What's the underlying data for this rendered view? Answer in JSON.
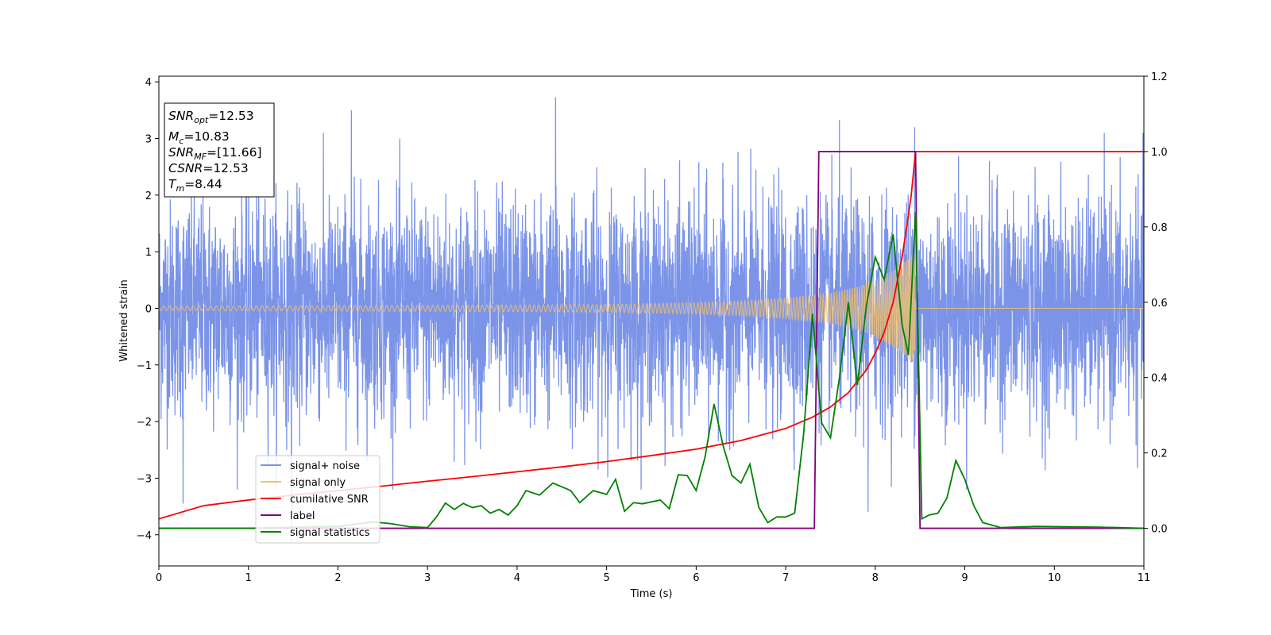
{
  "chart_data": {
    "type": "line",
    "xlabel": "Time (s)",
    "ylabel_left": "Whitened strain",
    "xlim": [
      0,
      11
    ],
    "ylim_left": [
      -4.55,
      4.1
    ],
    "ylim_right": [
      -0.1,
      1.2
    ],
    "grid": false,
    "legend_position": "lower-left",
    "x_ticks": [
      "0",
      "1",
      "2",
      "3",
      "4",
      "5",
      "6",
      "7",
      "8",
      "9",
      "10",
      "11"
    ],
    "y_ticks_left": [
      "−4",
      "−3",
      "−2",
      "−1",
      "0",
      "1",
      "2",
      "3",
      "4"
    ],
    "y_ticks_right": [
      "0.0",
      "0.2",
      "0.4",
      "0.6",
      "0.8",
      "1.0",
      "1.2"
    ],
    "info_box": {
      "snr_opt": {
        "base": "SNR",
        "sub": "opt",
        "value": "=12.53"
      },
      "mc": {
        "base": "M",
        "sub": "c",
        "value": "=10.83"
      },
      "snr_mf": {
        "base": "SNR",
        "sub": "MF",
        "value": "=[11.66]"
      },
      "csnr": {
        "base": "CSNR",
        "sub": "",
        "value": "=12.53"
      },
      "tm": {
        "base": "T",
        "sub": "m",
        "value": "=8.44"
      }
    },
    "series": [
      {
        "name": "signal+ noise",
        "color": "#7b94e8",
        "axis": "left",
        "description_of_shape": "Gaussian-like noise, amplitude ±2.5 typical, extremes reaching 3.73 (~4.4 s) and −4.15 (~1.5 s)",
        "peaks": [
          [
            0.27,
            -3.45
          ],
          [
            1.48,
            -4.15
          ],
          [
            2.15,
            3.5
          ],
          [
            4.43,
            3.73
          ],
          [
            7.6,
            3.33
          ],
          [
            7.92,
            -3.6
          ],
          [
            8.44,
            3.2
          ]
        ]
      },
      {
        "name": "signal only",
        "color": "#f2c06b",
        "axis": "left",
        "envelope": [
          [
            0,
            0.04
          ],
          [
            1,
            0.045
          ],
          [
            2,
            0.05
          ],
          [
            3,
            0.055
          ],
          [
            4,
            0.06
          ],
          [
            5,
            0.07
          ],
          [
            6,
            0.1
          ],
          [
            6.5,
            0.13
          ],
          [
            7,
            0.18
          ],
          [
            7.5,
            0.27
          ],
          [
            7.8,
            0.38
          ],
          [
            8.0,
            0.5
          ],
          [
            8.2,
            0.68
          ],
          [
            8.35,
            0.85
          ],
          [
            8.44,
            1.0
          ],
          [
            8.45,
            0.0
          ],
          [
            11,
            0.0
          ]
        ]
      },
      {
        "name": "cumilative SNR",
        "color": "#ff0000",
        "axis": "right",
        "points": [
          [
            0,
            0.025
          ],
          [
            0.5,
            0.06
          ],
          [
            1,
            0.075
          ],
          [
            1.5,
            0.088
          ],
          [
            2,
            0.1
          ],
          [
            2.5,
            0.112
          ],
          [
            3,
            0.125
          ],
          [
            3.5,
            0.137
          ],
          [
            4,
            0.15
          ],
          [
            4.5,
            0.163
          ],
          [
            5,
            0.177
          ],
          [
            5.5,
            0.193
          ],
          [
            6,
            0.21
          ],
          [
            6.5,
            0.233
          ],
          [
            7,
            0.265
          ],
          [
            7.3,
            0.295
          ],
          [
            7.5,
            0.322
          ],
          [
            7.7,
            0.36
          ],
          [
            7.9,
            0.42
          ],
          [
            8.0,
            0.465
          ],
          [
            8.1,
            0.52
          ],
          [
            8.2,
            0.6
          ],
          [
            8.3,
            0.72
          ],
          [
            8.4,
            0.88
          ],
          [
            8.45,
            1.0
          ],
          [
            11,
            1.0
          ]
        ]
      },
      {
        "name": "label",
        "color": "#800080",
        "axis": "right",
        "points": [
          [
            0,
            0.0
          ],
          [
            7.32,
            0.0
          ],
          [
            7.37,
            1.0
          ],
          [
            8.45,
            1.0
          ],
          [
            8.5,
            0.0
          ],
          [
            11,
            0.0
          ]
        ]
      },
      {
        "name": "signal statistics",
        "color": "#008000",
        "axis": "right",
        "points": [
          [
            0,
            0.0
          ],
          [
            1.0,
            0.0
          ],
          [
            2.0,
            0.005
          ],
          [
            2.4,
            0.017
          ],
          [
            2.6,
            0.012
          ],
          [
            2.8,
            0.004
          ],
          [
            3.0,
            0.002
          ],
          [
            3.1,
            0.03
          ],
          [
            3.2,
            0.067
          ],
          [
            3.3,
            0.05
          ],
          [
            3.4,
            0.066
          ],
          [
            3.5,
            0.055
          ],
          [
            3.6,
            0.06
          ],
          [
            3.7,
            0.04
          ],
          [
            3.8,
            0.05
          ],
          [
            3.9,
            0.035
          ],
          [
            4.0,
            0.06
          ],
          [
            4.1,
            0.1
          ],
          [
            4.25,
            0.088
          ],
          [
            4.4,
            0.12
          ],
          [
            4.6,
            0.1
          ],
          [
            4.7,
            0.068
          ],
          [
            4.85,
            0.1
          ],
          [
            5.0,
            0.09
          ],
          [
            5.1,
            0.13
          ],
          [
            5.2,
            0.045
          ],
          [
            5.3,
            0.068
          ],
          [
            5.4,
            0.065
          ],
          [
            5.6,
            0.075
          ],
          [
            5.7,
            0.052
          ],
          [
            5.8,
            0.142
          ],
          [
            5.9,
            0.14
          ],
          [
            6.0,
            0.1
          ],
          [
            6.1,
            0.19
          ],
          [
            6.2,
            0.33
          ],
          [
            6.3,
            0.22
          ],
          [
            6.4,
            0.14
          ],
          [
            6.5,
            0.12
          ],
          [
            6.6,
            0.17
          ],
          [
            6.7,
            0.055
          ],
          [
            6.8,
            0.015
          ],
          [
            6.9,
            0.03
          ],
          [
            7.0,
            0.03
          ],
          [
            7.1,
            0.04
          ],
          [
            7.2,
            0.25
          ],
          [
            7.3,
            0.57
          ],
          [
            7.4,
            0.28
          ],
          [
            7.5,
            0.24
          ],
          [
            7.6,
            0.4
          ],
          [
            7.7,
            0.6
          ],
          [
            7.8,
            0.38
          ],
          [
            7.9,
            0.59
          ],
          [
            8.0,
            0.72
          ],
          [
            8.1,
            0.66
          ],
          [
            8.2,
            0.78
          ],
          [
            8.3,
            0.54
          ],
          [
            8.37,
            0.46
          ],
          [
            8.45,
            0.84
          ],
          [
            8.52,
            0.025
          ],
          [
            8.6,
            0.035
          ],
          [
            8.7,
            0.04
          ],
          [
            8.8,
            0.08
          ],
          [
            8.9,
            0.18
          ],
          [
            9.0,
            0.13
          ],
          [
            9.1,
            0.06
          ],
          [
            9.2,
            0.015
          ],
          [
            9.4,
            0.002
          ],
          [
            9.8,
            0.005
          ],
          [
            10.5,
            0.003
          ],
          [
            11,
            0.0
          ]
        ]
      }
    ]
  }
}
